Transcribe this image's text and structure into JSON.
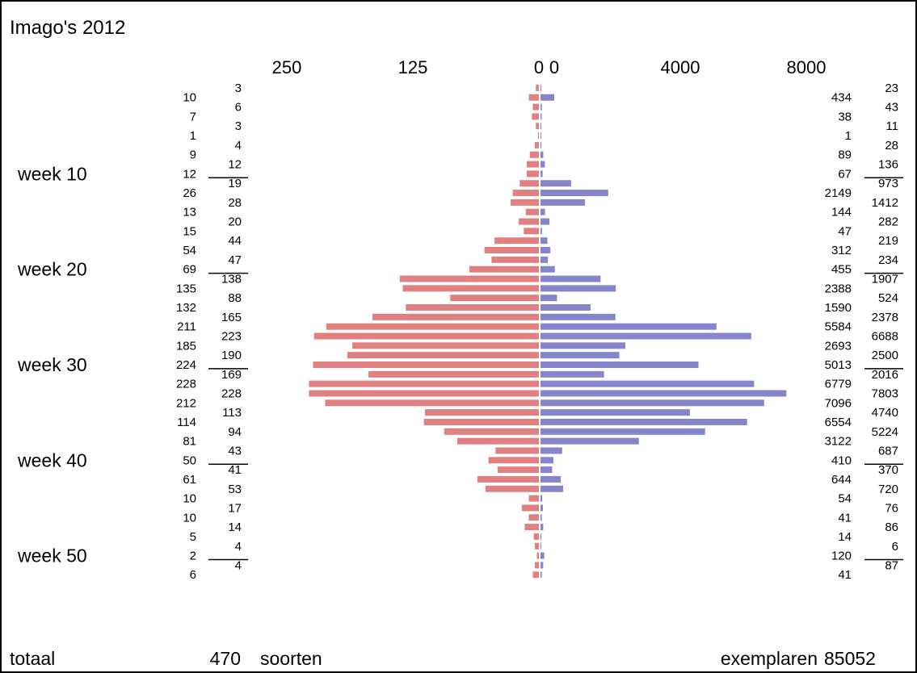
{
  "chart_data": {
    "type": "bar",
    "title": "Imago's 2012",
    "left_axis_ticks": [
      "250",
      "125",
      "0"
    ],
    "right_axis_ticks": [
      "0",
      "4000",
      "8000"
    ],
    "left_axis_max": 250,
    "right_axis_max": 8000,
    "weeks": [
      1,
      2,
      3,
      4,
      5,
      6,
      7,
      8,
      9,
      10,
      11,
      12,
      13,
      14,
      15,
      16,
      17,
      18,
      19,
      20,
      21,
      22,
      23,
      24,
      25,
      26,
      27,
      28,
      29,
      30,
      31,
      32,
      33,
      34,
      35,
      36,
      37,
      38,
      39,
      40,
      41,
      42,
      43,
      44,
      45,
      46,
      47,
      48,
      49,
      50,
      51,
      52
    ],
    "species": [
      3,
      10,
      6,
      7,
      3,
      1,
      4,
      9,
      12,
      12,
      19,
      26,
      28,
      13,
      20,
      15,
      44,
      54,
      47,
      69,
      138,
      135,
      88,
      132,
      165,
      211,
      223,
      185,
      190,
      224,
      169,
      228,
      228,
      212,
      113,
      114,
      94,
      81,
      43,
      50,
      41,
      61,
      53,
      10,
      17,
      10,
      14,
      5,
      4,
      2,
      4,
      6
    ],
    "specimens": [
      23,
      434,
      43,
      38,
      11,
      1,
      28,
      89,
      136,
      67,
      973,
      2149,
      1412,
      144,
      282,
      47,
      219,
      312,
      234,
      455,
      1907,
      2388,
      524,
      1590,
      2378,
      5584,
      6688,
      2693,
      2500,
      5013,
      2016,
      6779,
      7803,
      7096,
      4740,
      6554,
      5224,
      3122,
      687,
      410,
      370,
      644,
      720,
      54,
      76,
      41,
      86,
      14,
      6,
      120,
      87,
      41
    ],
    "week_labels": [
      {
        "label": "week 10",
        "week": 10
      },
      {
        "label": "week 20",
        "week": 20
      },
      {
        "label": "week 30",
        "week": 30
      },
      {
        "label": "week 40",
        "week": 40
      },
      {
        "label": "week 50",
        "week": 50
      }
    ],
    "colors": {
      "species_bar": "#e08080",
      "specimens_bar": "#8585cc",
      "frame": "#000000"
    }
  },
  "footer": {
    "totaal_label": "totaal",
    "species_total": "470",
    "species_label": "soorten",
    "specimens_label": "exemplaren",
    "specimens_total": "85052"
  }
}
